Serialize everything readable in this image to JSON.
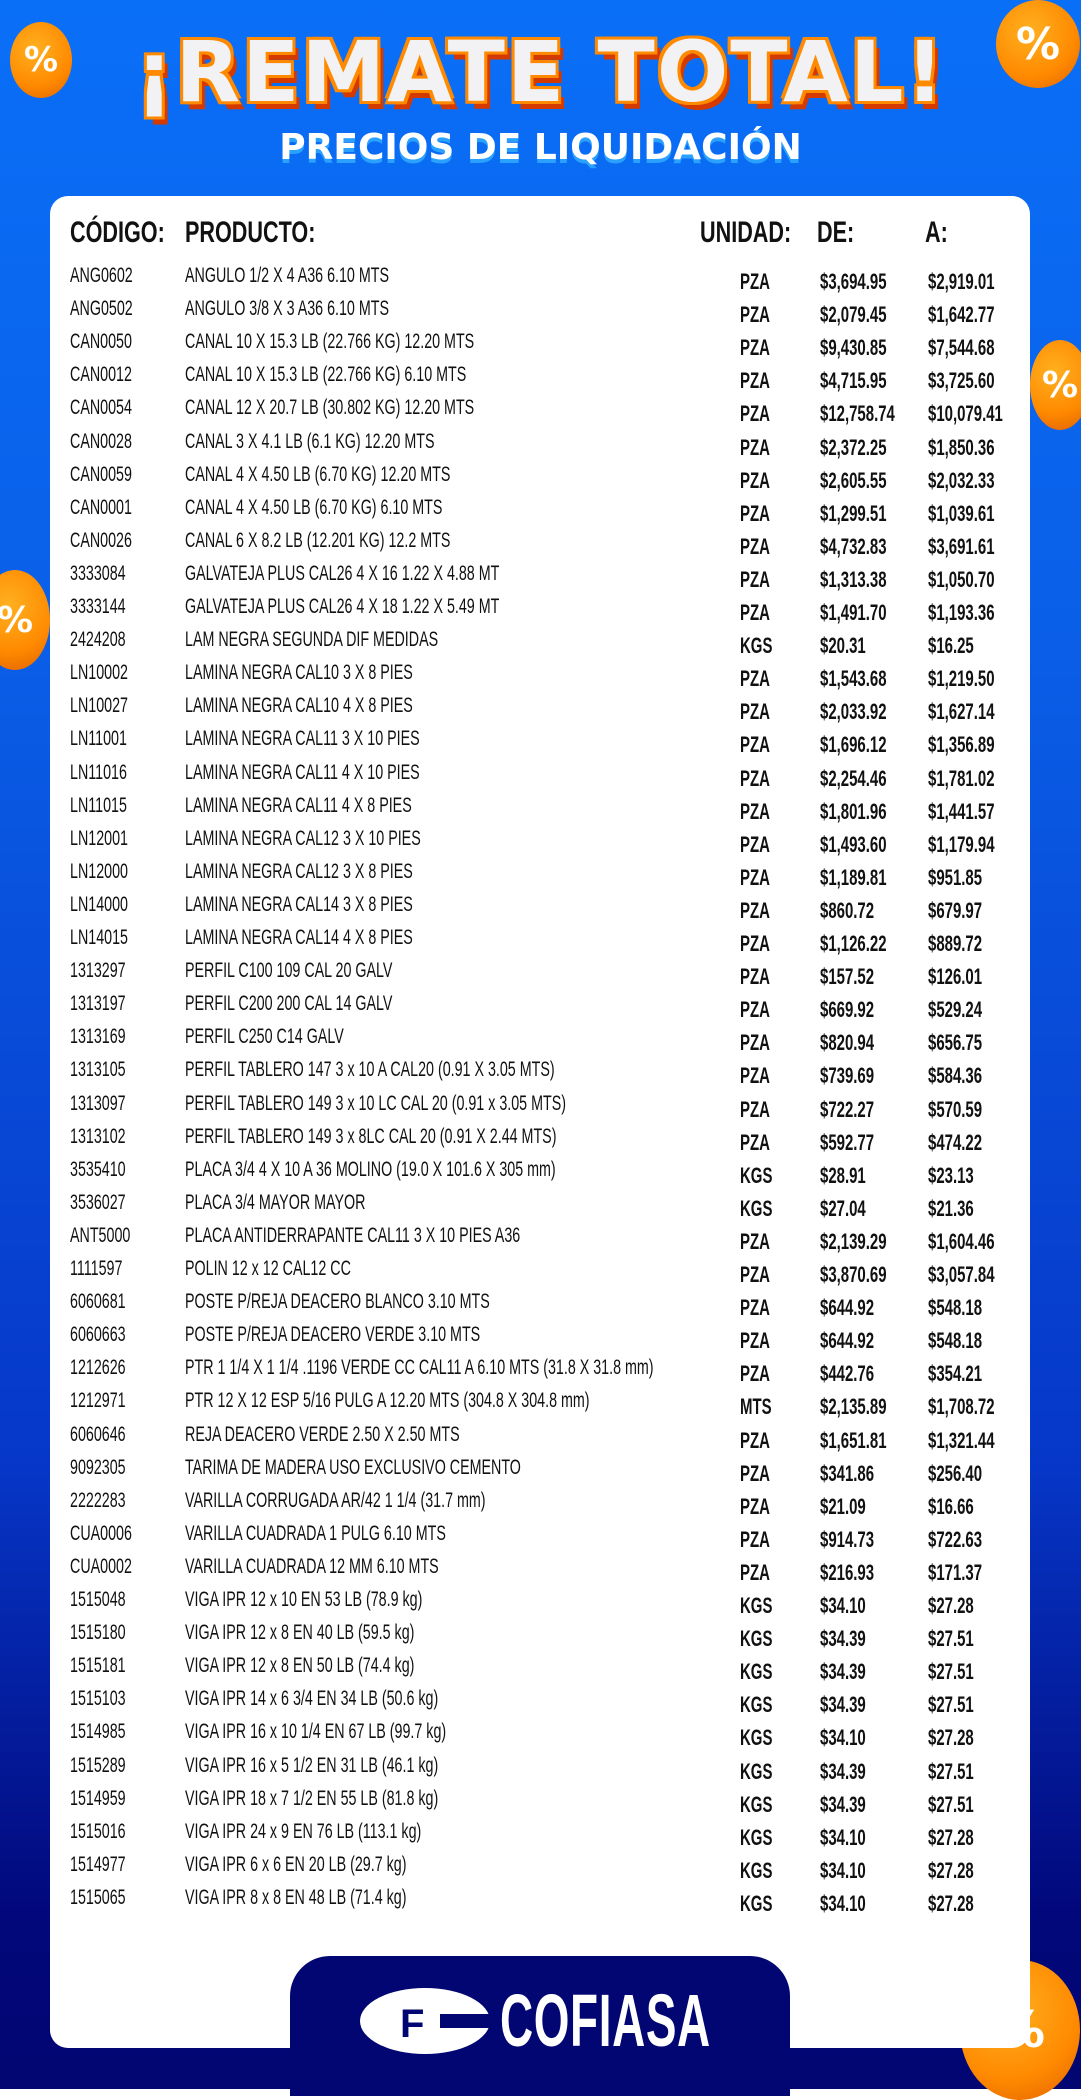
{
  "banner": {
    "title": "¡REMATE TOTAL!",
    "subtitle": "PRECIOS DE LIQUIDACIÓN"
  },
  "table": {
    "headers": {
      "code": "CÓDIGO:",
      "product": "PRODUCTO:",
      "unit": "UNIDAD:",
      "from": "DE:",
      "to": "A:"
    },
    "rows": [
      [
        "ANG0602",
        "ANGULO 1/2 X 4 A36 6.10 MTS",
        "PZA",
        "$3,694.95",
        "$2,919.01"
      ],
      [
        "ANG0502",
        "ANGULO 3/8 X 3 A36 6.10 MTS",
        "PZA",
        "$2,079.45",
        "$1,642.77"
      ],
      [
        "CAN0050",
        "CANAL 10 X 15.3 LB (22.766 KG) 12.20 MTS",
        "PZA",
        "$9,430.85",
        "$7,544.68"
      ],
      [
        "CAN0012",
        "CANAL 10 X 15.3 LB (22.766 KG) 6.10 MTS",
        "PZA",
        "$4,715.95",
        "$3,725.60"
      ],
      [
        "CAN0054",
        "CANAL 12 X 20.7 LB (30.802 KG) 12.20 MTS",
        "PZA",
        "$12,758.74",
        "$10,079.41"
      ],
      [
        "CAN0028",
        "CANAL 3 X 4.1 LB (6.1 KG) 12.20 MTS",
        "PZA",
        "$2,372.25",
        "$1,850.36"
      ],
      [
        "CAN0059",
        "CANAL 4 X 4.50 LB (6.70 KG) 12.20 MTS",
        "PZA",
        "$2,605.55",
        "$2,032.33"
      ],
      [
        "CAN0001",
        "CANAL 4 X 4.50 LB (6.70 KG) 6.10 MTS",
        "PZA",
        "$1,299.51",
        "$1,039.61"
      ],
      [
        "CAN0026",
        "CANAL 6 X 8.2 LB (12.201 KG) 12.2 MTS",
        "PZA",
        "$4,732.83",
        "$3,691.61"
      ],
      [
        "3333084",
        "GALVATEJA PLUS CAL26 4 X 16   1.22 X 4.88 MT",
        "PZA",
        "$1,313.38",
        "$1,050.70"
      ],
      [
        "3333144",
        "GALVATEJA PLUS CAL26 4 X 18   1.22 X 5.49 MT",
        "PZA",
        "$1,491.70",
        "$1,193.36"
      ],
      [
        "2424208",
        "LAM NEGRA SEGUNDA DIF MEDIDAS",
        "KGS",
        "$20.31",
        "$16.25"
      ],
      [
        "LN10002",
        "LAMINA NEGRA CAL10 3 X 8 PIES",
        "PZA",
        "$1,543.68",
        "$1,219.50"
      ],
      [
        "LN10027",
        "LAMINA NEGRA CAL10 4 X 8 PIES",
        "PZA",
        "$2,033.92",
        "$1,627.14"
      ],
      [
        "LN11001",
        "LAMINA NEGRA CAL11 3 X 10 PIES",
        "PZA",
        "$1,696.12",
        "$1,356.89"
      ],
      [
        "LN11016",
        "LAMINA NEGRA CAL11 4 X 10 PIES",
        "PZA",
        "$2,254.46",
        "$1,781.02"
      ],
      [
        "LN11015",
        "LAMINA NEGRA CAL11 4 X 8 PIES",
        "PZA",
        "$1,801.96",
        "$1,441.57"
      ],
      [
        "LN12001",
        "LAMINA NEGRA CAL12 3 X 10 PIES",
        "PZA",
        "$1,493.60",
        "$1,179.94"
      ],
      [
        "LN12000",
        "LAMINA NEGRA CAL12 3 X 8 PIES",
        "PZA",
        "$1,189.81",
        "$951.85"
      ],
      [
        "LN14000",
        "LAMINA NEGRA CAL14 3 X 8 PIES",
        "PZA",
        "$860.72",
        "$679.97"
      ],
      [
        "LN14015",
        "LAMINA NEGRA CAL14 4 X 8 PIES",
        "PZA",
        "$1,126.22",
        "$889.72"
      ],
      [
        "1313297",
        "PERFIL C100 109 CAL 20 GALV",
        "PZA",
        "$157.52",
        "$126.01"
      ],
      [
        "1313197",
        "PERFIL C200 200 CAL 14 GALV",
        "PZA",
        "$669.92",
        "$529.24"
      ],
      [
        "1313169",
        "PERFIL C250 C14 GALV",
        "PZA",
        "$820.94",
        "$656.75"
      ],
      [
        "1313105",
        "PERFIL TABLERO 147 3 x 10 A CAL20 (0.91 X  3.05 MTS)",
        "PZA",
        "$739.69",
        "$584.36"
      ],
      [
        "1313097",
        "PERFIL TABLERO 149 3 x 10 LC  CAL 20 (0.91 x 3.05 MTS)",
        "PZA",
        "$722.27",
        "$570.59"
      ],
      [
        "1313102",
        "PERFIL TABLERO 149 3 x 8LC  CAL 20 (0.91 X 2.44 MTS)",
        "PZA",
        "$592.77",
        "$474.22"
      ],
      [
        "3535410",
        "PLACA 3/4 4 X 10 A 36 MOLINO (19.0 X 101.6 X 305 mm)",
        "KGS",
        "$28.91",
        "$23.13"
      ],
      [
        "3536027",
        "PLACA 3/4 MAYOR MAYOR",
        "KGS",
        "$27.04",
        "$21.36"
      ],
      [
        "ANT5000",
        "PLACA ANTIDERRAPANTE CAL11 3 X 10 PIES A36",
        "PZA",
        "$2,139.29",
        "$1,604.46"
      ],
      [
        "1111597",
        "POLIN 12 x 12 CAL12 CC",
        "PZA",
        "$3,870.69",
        "$3,057.84"
      ],
      [
        "6060681",
        "POSTE P/REJA DEACERO BLANCO  3.10 MTS",
        "PZA",
        "$644.92",
        "$548.18"
      ],
      [
        "6060663",
        "POSTE P/REJA DEACERO VERDE 3.10 MTS",
        "PZA",
        "$644.92",
        "$548.18"
      ],
      [
        "1212626",
        "PTR 1 1/4 X 1 1/4 .1196 VERDE CC CAL11 A 6.10 MTS (31.8 X 31.8 mm)",
        "PZA",
        "$442.76",
        "$354.21"
      ],
      [
        "1212971",
        "PTR 12 X 12 ESP 5/16 PULG A 12.20 MTS (304.8 X 304.8 mm)",
        "MTS",
        "$2,135.89",
        "$1,708.72"
      ],
      [
        "6060646",
        "REJA DEACERO VERDE   2.50 X 2.50 MTS",
        "PZA",
        "$1,651.81",
        "$1,321.44"
      ],
      [
        "9092305",
        "TARIMA DE MADERA USO EXCLUSIVO CEMENTO",
        "PZA",
        "$341.86",
        "$256.40"
      ],
      [
        "2222283",
        "VARILLA CORRUGADA AR/42 1 1/4   (31.7  mm)",
        "PZA",
        "$21.09",
        "$16.66"
      ],
      [
        "CUA0006",
        "VARILLA CUADRADA 1 PULG 6.10 MTS",
        "PZA",
        "$914.73",
        "$722.63"
      ],
      [
        "CUA0002",
        "VARILLA CUADRADA 12 MM 6.10 MTS",
        "PZA",
        "$216.93",
        "$171.37"
      ],
      [
        "1515048",
        "VIGA IPR 12 x 10 EN 53 LB (78.9 kg)",
        "KGS",
        "$34.10",
        "$27.28"
      ],
      [
        "1515180",
        "VIGA IPR 12 x 8 EN 40 LB (59.5 kg)",
        "KGS",
        "$34.39",
        "$27.51"
      ],
      [
        "1515181",
        "VIGA IPR 12 x 8 EN 50 LB (74.4 kg)",
        "KGS",
        "$34.39",
        "$27.51"
      ],
      [
        "1515103",
        "VIGA IPR 14 x 6 3/4 EN 34 LB (50.6 kg)",
        "KGS",
        "$34.39",
        "$27.51"
      ],
      [
        "1514985",
        "VIGA IPR 16 x 10 1/4  EN 67 LB (99.7 kg)",
        "KGS",
        "$34.10",
        "$27.28"
      ],
      [
        "1515289",
        "VIGA IPR 16 x 5 1/2 EN 31 LB (46.1 kg)",
        "KGS",
        "$34.39",
        "$27.51"
      ],
      [
        "1514959",
        "VIGA IPR 18 x 7 1/2 EN 55 LB (81.8 kg)",
        "KGS",
        "$34.39",
        "$27.51"
      ],
      [
        "1515016",
        "VIGA IPR 24 x 9 EN 76 LB (113.1 kg)",
        "KGS",
        "$34.10",
        "$27.28"
      ],
      [
        "1514977",
        "VIGA IPR 6 x 6 EN 20 LB (29.7 kg)",
        "KGS",
        "$34.10",
        "$27.28"
      ],
      [
        "1515065",
        "VIGA IPR 8 x 8 EN 48 LB (71.4 kg)",
        "KGS",
        "$34.10",
        "$27.28"
      ]
    ]
  },
  "footer": {
    "brand": "COFIASA"
  },
  "colors": {
    "blue_top": "#0a6ff7",
    "navy": "#020672",
    "orange": "#ff8a00"
  },
  "icons": [
    "percent-coin-icon",
    "cofiasa-logo-icon"
  ]
}
